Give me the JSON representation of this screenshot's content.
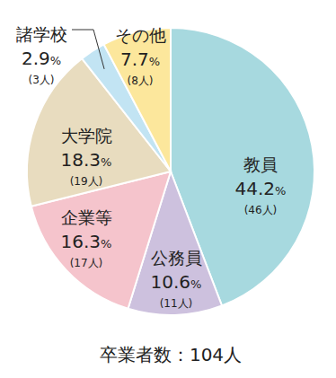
{
  "chart_data": {
    "type": "pie",
    "categories": [
      "教員",
      "公務員",
      "企業等",
      "大学院",
      "諸学校",
      "その他"
    ],
    "values": [
      44.2,
      10.6,
      16.3,
      18.3,
      2.9,
      7.7
    ],
    "value_labels": [
      "44.2%",
      "10.6%",
      "16.3%",
      "18.3%",
      "2.9%",
      "7.7%"
    ],
    "counts": [
      46,
      11,
      17,
      19,
      3,
      8
    ],
    "count_labels": [
      "(46人)",
      "(11人)",
      "(17人)",
      "(19人)",
      "(3人)",
      "(8人)"
    ],
    "colors": [
      "#a7d9df",
      "#cdc1de",
      "#f5c4cc",
      "#e8dcbf",
      "#c2e4f3",
      "#fce79c"
    ],
    "data_labels": true,
    "caption": "卒業者数：104人"
  }
}
